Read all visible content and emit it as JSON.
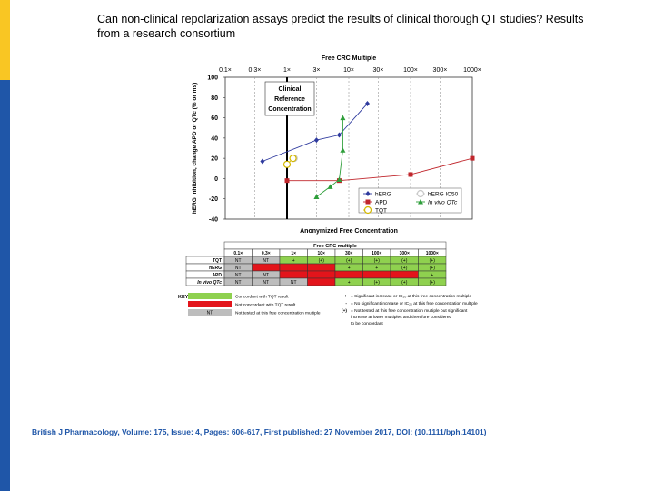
{
  "slide": {
    "title": "Can non-clinical repolarization assays predict the results of clinical thorough QT studies? Results from a research consortium",
    "citation": "British J Pharmacology, Volume: 175, Issue: 4, Pages: 606-617, First published: 27 November 2017, DOI: (10.1111/bph.14101)"
  },
  "chart_data": [
    {
      "type": "line",
      "title": "Free CRC Multiple",
      "xlabel": "Anonymized Free Concentration",
      "ylabel": "hERG inhibition, change APD or QTc (% or ms)",
      "ylim": [
        -40,
        100
      ],
      "yticks": [
        -40,
        -20,
        0,
        20,
        40,
        60,
        80,
        100
      ],
      "x_scale": "log",
      "x_ticks": [
        "0.1×",
        "0.3×",
        "1×",
        "3×",
        "10×",
        "30×",
        "100×",
        "300×",
        "1000×"
      ],
      "annotation": "Clinical Reference Concentration",
      "grid": "vertical dashed",
      "legend_placement": "bottom-right",
      "series": [
        {
          "name": "hERG",
          "color": "#2e3a9e",
          "marker": "diamond",
          "x": [
            0.4,
            3,
            7
          ],
          "y": [
            17,
            38,
            43
          ],
          "extra_x": [
            20
          ],
          "extra_y": [
            74
          ]
        },
        {
          "name": "hERG IC50",
          "color": "#c8c8c8",
          "marker": "open-circle",
          "x": [
            1.3
          ],
          "y": [
            20
          ]
        },
        {
          "name": "APD",
          "color": "#c0262c",
          "marker": "square",
          "x": [
            1,
            7,
            100,
            1000
          ],
          "y": [
            -2,
            -2,
            4,
            20
          ]
        },
        {
          "name": "In vivo QTc",
          "color": "#2e9e3a",
          "marker": "triangle",
          "x": [
            3,
            5,
            7,
            8,
            8
          ],
          "y": [
            -18,
            -8,
            -1,
            28,
            60
          ]
        },
        {
          "name": "TQT",
          "color": "#d4b800",
          "marker": "open-circle",
          "x": [
            1,
            1.25
          ],
          "y": [
            14,
            20
          ]
        }
      ]
    },
    {
      "type": "table",
      "title": "Free CRC multiple",
      "columns": [
        "0.1×",
        "0.3×",
        "1×",
        "10×",
        "30×",
        "100×",
        "300×",
        "1000×"
      ],
      "rows": [
        {
          "label": "TQT",
          "cells": [
            "NT",
            "NT",
            "+",
            "(+)",
            "(+)",
            "(+)",
            "(+)",
            "(+)"
          ],
          "status": [
            "nt",
            "nt",
            "green",
            "green",
            "green",
            "green",
            "green",
            "green"
          ]
        },
        {
          "label": "hERG",
          "cells": [
            "NT",
            "",
            "",
            "",
            "+",
            "+",
            "(+)",
            "(+)"
          ],
          "status": [
            "nt",
            "red",
            "red",
            "red",
            "green",
            "green",
            "green",
            "green"
          ]
        },
        {
          "label": "APD",
          "cells": [
            "NT",
            "NT",
            "",
            "",
            "",
            "",
            "",
            "+"
          ],
          "status": [
            "nt",
            "nt",
            "red",
            "red",
            "red",
            "red",
            "red",
            "green"
          ]
        },
        {
          "label": "In vivo QTc",
          "cells": [
            "NT",
            "NT",
            "NT",
            "",
            "+",
            "(+)",
            "(+)",
            "(+)"
          ],
          "status": [
            "nt",
            "nt",
            "nt",
            "red",
            "green",
            "green",
            "green",
            "green"
          ]
        }
      ],
      "colors": {
        "green": "#8fd14f",
        "red": "#e3141b",
        "nt": "#bdbdbd"
      }
    }
  ],
  "key": {
    "label": "KEY",
    "items": [
      {
        "swatch_color": "#8fd14f",
        "swatch_text": "",
        "text": "Concordant with TQT result"
      },
      {
        "swatch_color": "#e3141b",
        "swatch_text": "",
        "text": "Not concordant with TQT result"
      },
      {
        "swatch_color": "#bdbdbd",
        "swatch_text": "NT",
        "text": "Not tested at this free concentration multiple"
      }
    ],
    "notes": [
      {
        "symbol": "+",
        "lines": [
          "= Significant increase or IC₂₀ at this free concentration multiple"
        ]
      },
      {
        "symbol": "-",
        "lines": [
          "= No significant increase or IC₂₀ at this free concentration multiple"
        ]
      },
      {
        "symbol": "(+)",
        "lines": [
          "= Not tested at this free concentration multiple but significant",
          "increase at lower multiples and therefore considered",
          "to be concordant"
        ]
      }
    ]
  }
}
